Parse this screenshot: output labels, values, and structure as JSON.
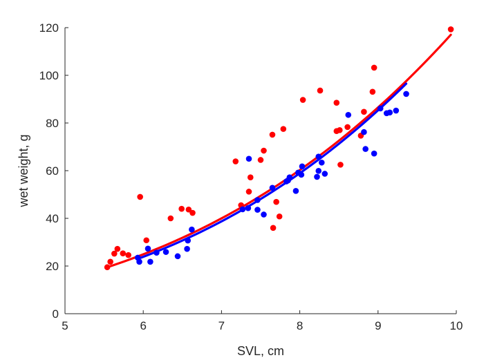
{
  "chart_data": {
    "type": "scatter",
    "title": "",
    "xlabel": "SVL, cm",
    "ylabel": "wet weight, g",
    "xlim": [
      5,
      10
    ],
    "ylim": [
      0,
      120
    ],
    "xticks": [
      5,
      6,
      7,
      8,
      9,
      10
    ],
    "yticks": [
      0,
      20,
      40,
      60,
      80,
      100,
      120
    ],
    "grid": false,
    "legend": "none",
    "series": [
      {
        "color": "#ff0000",
        "points": [
          [
            5.54,
            19.5
          ],
          [
            5.58,
            21.8
          ],
          [
            5.63,
            25.2
          ],
          [
            5.67,
            27.2
          ],
          [
            5.74,
            25.3
          ],
          [
            5.81,
            24.6
          ],
          [
            5.96,
            49.0
          ],
          [
            6.04,
            30.8
          ],
          [
            6.35,
            40.0
          ],
          [
            6.49,
            44.0
          ],
          [
            6.58,
            43.7
          ],
          [
            6.63,
            42.3
          ],
          [
            7.18,
            63.9
          ],
          [
            7.25,
            45.5
          ],
          [
            7.35,
            51.2
          ],
          [
            7.37,
            57.2
          ],
          [
            7.5,
            64.5
          ],
          [
            7.54,
            68.4
          ],
          [
            7.65,
            75.1
          ],
          [
            7.66,
            36.0
          ],
          [
            7.7,
            46.9
          ],
          [
            7.74,
            40.8
          ],
          [
            7.79,
            77.5
          ],
          [
            8.04,
            89.7
          ],
          [
            8.26,
            93.6
          ],
          [
            8.47,
            88.5
          ],
          [
            8.47,
            76.6
          ],
          [
            8.51,
            77.0
          ],
          [
            8.52,
            62.5
          ],
          [
            8.61,
            78.3
          ],
          [
            8.78,
            74.7
          ],
          [
            8.82,
            84.7
          ],
          [
            8.93,
            93.1
          ],
          [
            8.95,
            103.2
          ],
          [
            9.93,
            119.3
          ]
        ],
        "fit": {
          "x": [
            5.54,
            9.93
          ],
          "y": [
            19.5,
            117.0
          ]
        }
      },
      {
        "color": "#0000ff",
        "points": [
          [
            5.93,
            23.5
          ],
          [
            5.95,
            21.8
          ],
          [
            6.06,
            27.3
          ],
          [
            6.09,
            21.8
          ],
          [
            6.17,
            25.6
          ],
          [
            6.29,
            25.9
          ],
          [
            6.44,
            24.1
          ],
          [
            6.56,
            27.2
          ],
          [
            6.57,
            30.7
          ],
          [
            6.62,
            35.3
          ],
          [
            7.27,
            43.8
          ],
          [
            7.34,
            44.3
          ],
          [
            7.35,
            65.0
          ],
          [
            7.46,
            47.7
          ],
          [
            7.46,
            43.6
          ],
          [
            7.54,
            41.6
          ],
          [
            7.65,
            52.8
          ],
          [
            7.83,
            55.5
          ],
          [
            7.85,
            55.9
          ],
          [
            7.87,
            57.2
          ],
          [
            7.95,
            51.5
          ],
          [
            7.98,
            59.2
          ],
          [
            8.02,
            58.3
          ],
          [
            8.03,
            61.8
          ],
          [
            8.22,
            57.4
          ],
          [
            8.24,
            65.9
          ],
          [
            8.24,
            59.9
          ],
          [
            8.28,
            63.4
          ],
          [
            8.32,
            58.7
          ],
          [
            8.62,
            83.4
          ],
          [
            8.82,
            76.2
          ],
          [
            8.84,
            69.1
          ],
          [
            8.95,
            67.2
          ],
          [
            9.03,
            86.1
          ],
          [
            9.11,
            84.1
          ],
          [
            9.15,
            84.4
          ],
          [
            9.23,
            85.2
          ],
          [
            9.36,
            92.2
          ]
        ],
        "fit": {
          "x": [
            5.93,
            9.36
          ],
          "y": [
            23.0,
            96.5
          ]
        }
      }
    ]
  }
}
